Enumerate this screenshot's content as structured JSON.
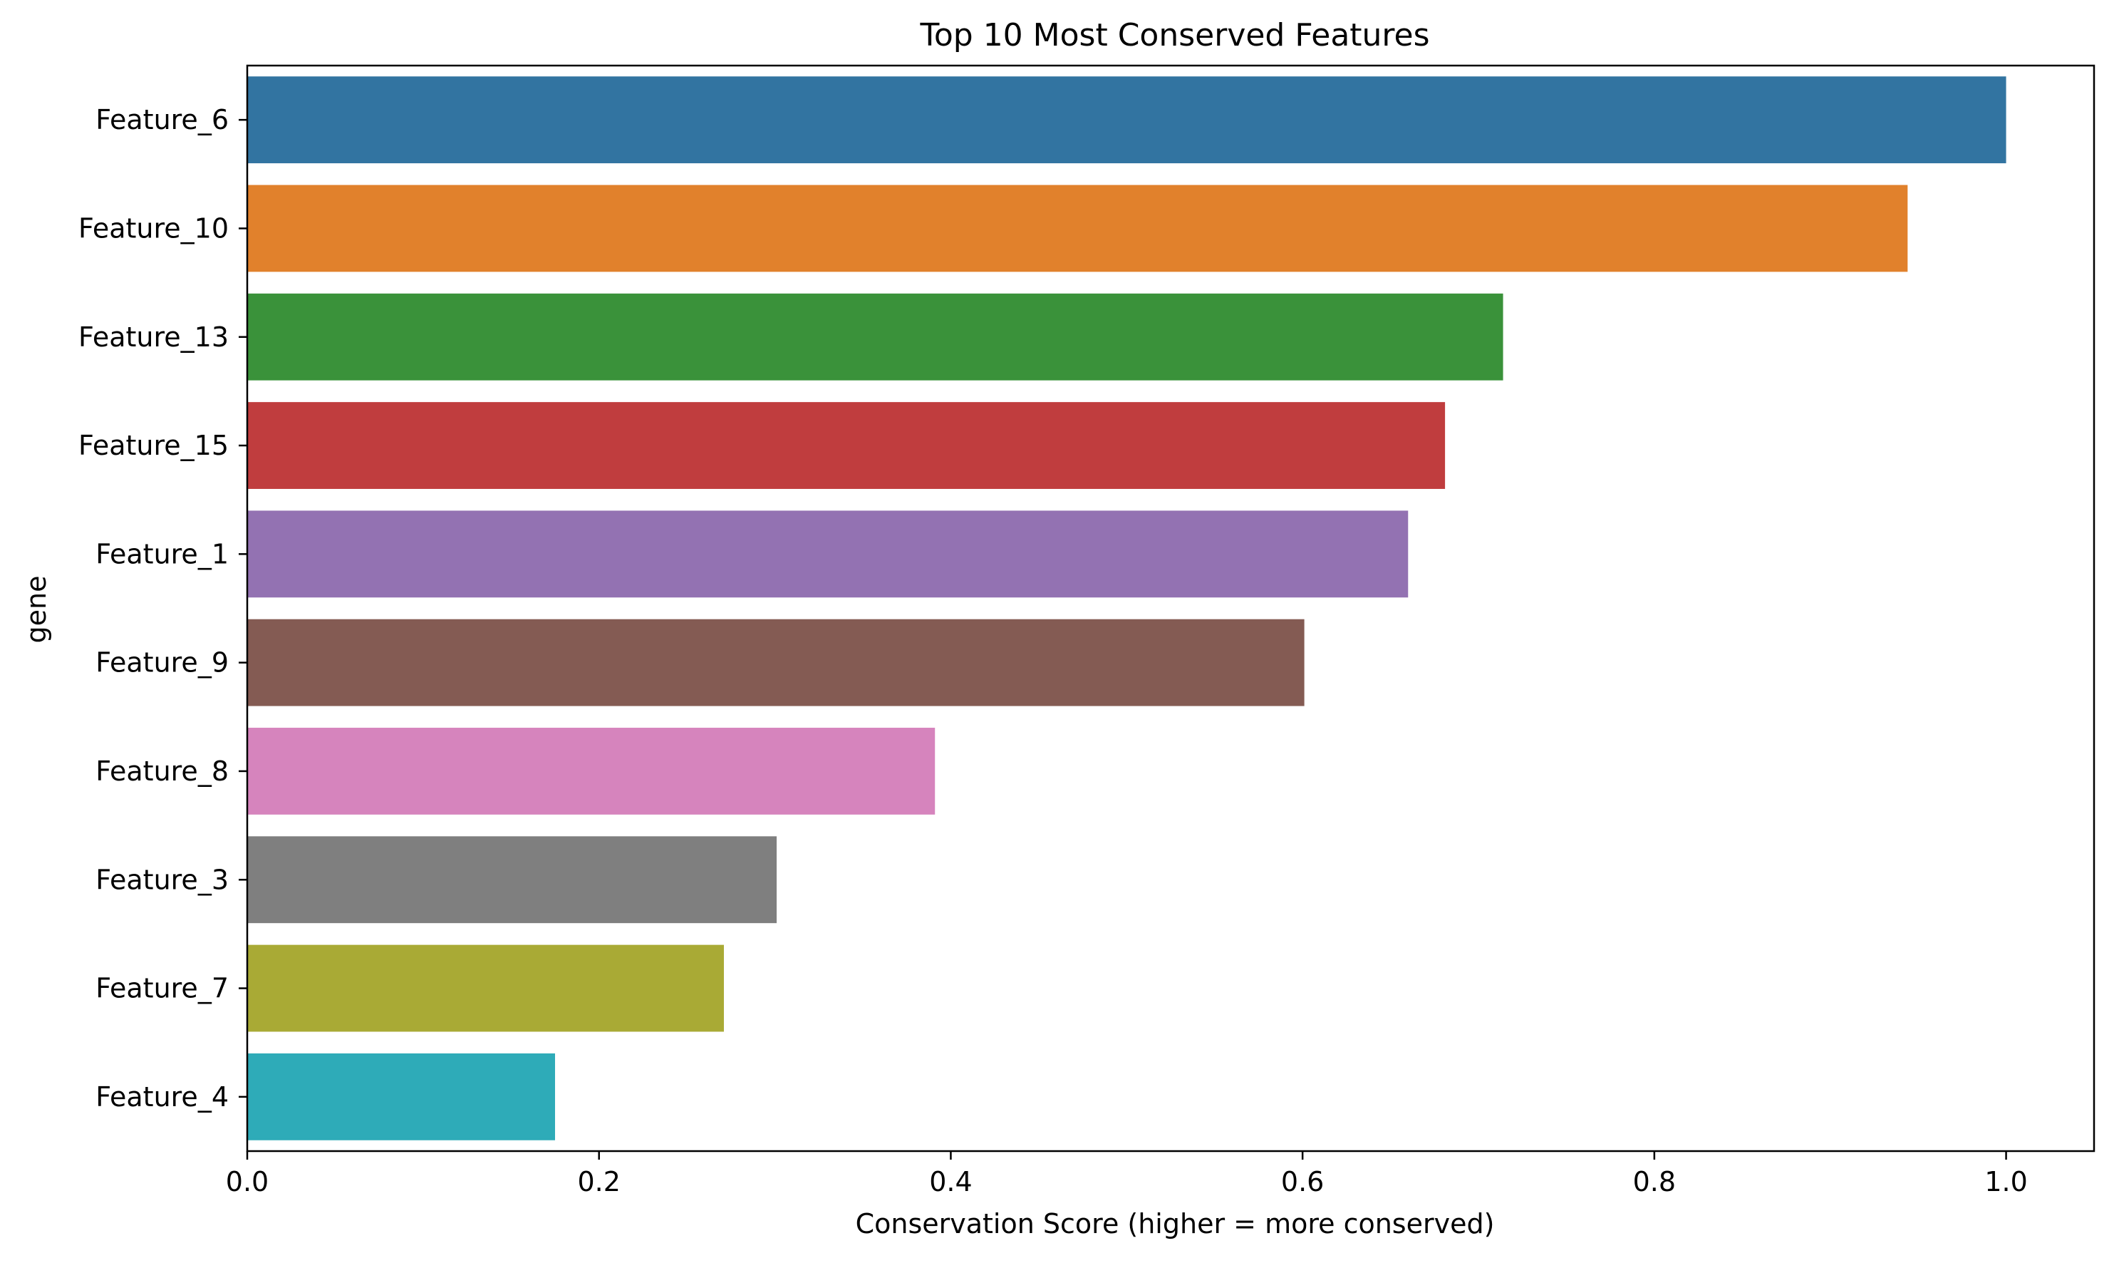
{
  "chart_data": {
    "type": "bar",
    "orientation": "horizontal",
    "title": "Top 10 Most Conserved Features",
    "xlabel": "Conservation Score (higher = more conserved)",
    "ylabel": "gene",
    "xlim": [
      0,
      1.05
    ],
    "xticks": [
      0.0,
      0.2,
      0.4,
      0.6,
      0.8,
      1.0
    ],
    "xtick_labels": [
      "0.0",
      "0.2",
      "0.4",
      "0.6",
      "0.8",
      "1.0"
    ],
    "grid": false,
    "categories": [
      "Feature_6",
      "Feature_10",
      "Feature_13",
      "Feature_15",
      "Feature_1",
      "Feature_9",
      "Feature_8",
      "Feature_3",
      "Feature_7",
      "Feature_4"
    ],
    "values": [
      1.0,
      0.944,
      0.714,
      0.681,
      0.66,
      0.601,
      0.391,
      0.301,
      0.271,
      0.175
    ],
    "colors": [
      "#3274a1",
      "#e1812c",
      "#3a923a",
      "#c03d3e",
      "#9372b2",
      "#845b53",
      "#d684bd",
      "#7f7f7f",
      "#a9aa35",
      "#2eabb8"
    ]
  }
}
